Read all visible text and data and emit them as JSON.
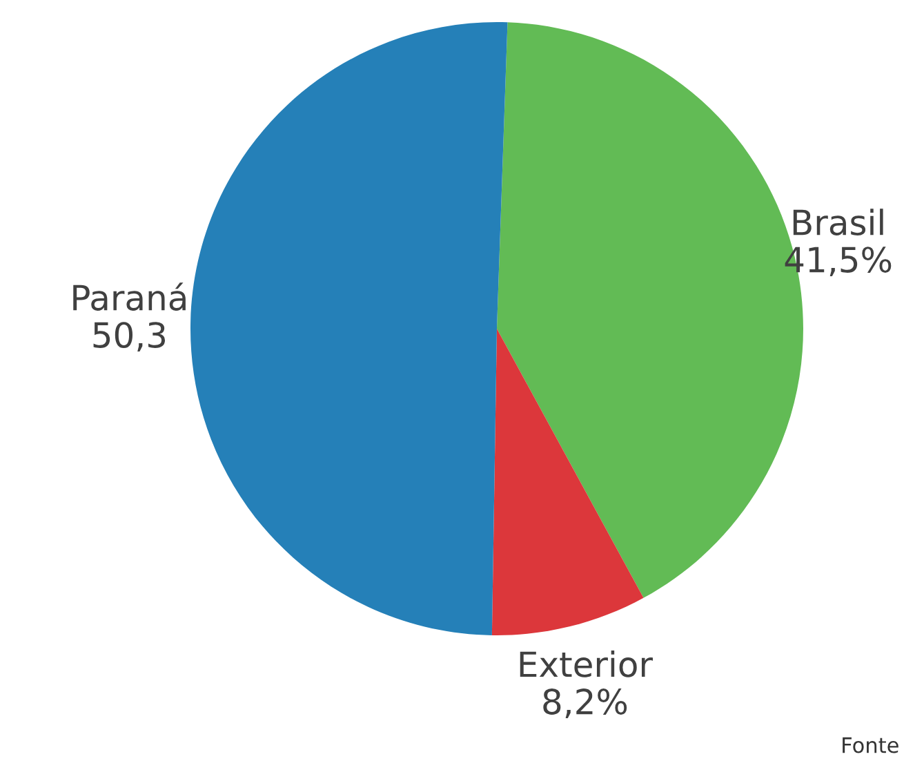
{
  "chart_data": {
    "type": "pie",
    "categories": [
      "Brasil",
      "Exterior",
      "Paraná"
    ],
    "values": [
      41.5,
      8.2,
      50.3
    ],
    "colors": [
      "#62bb55",
      "#dc373b",
      "#2580b8"
    ],
    "value_labels": [
      "41,5%",
      "8,2%",
      "50,3"
    ],
    "annotations": [
      "Fonte"
    ]
  }
}
